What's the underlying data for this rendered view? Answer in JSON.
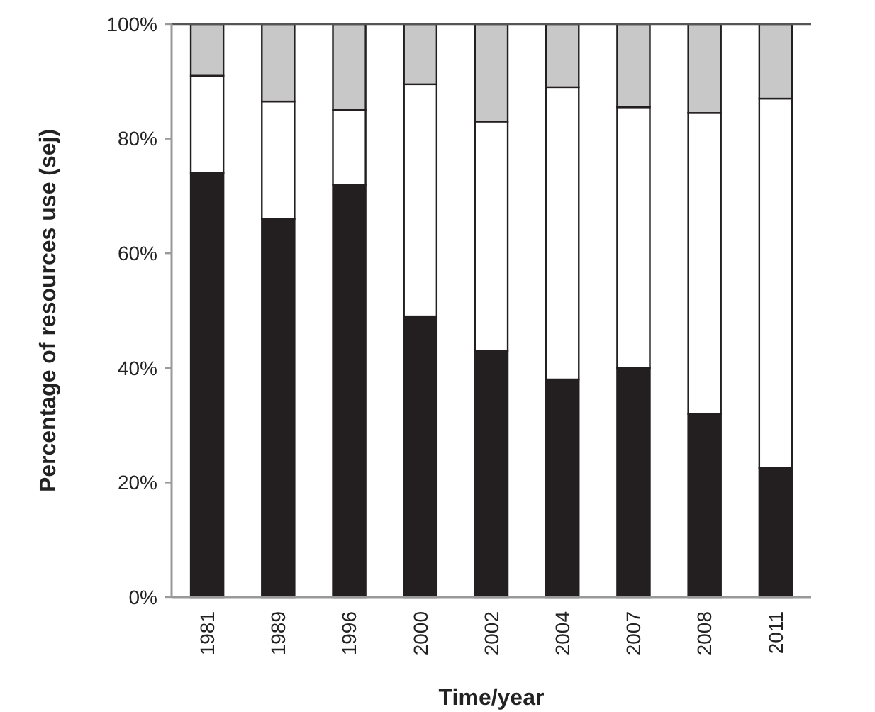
{
  "chart_data": {
    "type": "bar",
    "stacked": true,
    "xlabel": "Time/year",
    "ylabel": "Percentage of resources use (sej)",
    "categories": [
      "1981",
      "1989",
      "1996",
      "2000",
      "2002",
      "2004",
      "2007",
      "2008",
      "2011"
    ],
    "series": [
      {
        "color": "#231f20",
        "values": [
          74,
          66,
          72,
          49,
          43,
          38,
          40,
          32,
          22.5
        ]
      },
      {
        "color": "#ffffff",
        "values": [
          17,
          20.5,
          13,
          40.5,
          40,
          51,
          45.5,
          52.5,
          64.5
        ]
      },
      {
        "color": "#c8c8c8",
        "values": [
          9,
          13.5,
          15,
          10.5,
          17,
          11,
          14.5,
          15.5,
          13
        ]
      }
    ],
    "ylim": [
      0,
      100
    ],
    "yticks": [
      {
        "value": 0,
        "label": "0%"
      },
      {
        "value": 20,
        "label": "20%"
      },
      {
        "value": 40,
        "label": "40%"
      },
      {
        "value": 60,
        "label": "60%"
      },
      {
        "value": 80,
        "label": "80%"
      },
      {
        "value": 100,
        "label": "100%"
      }
    ],
    "grid": false
  }
}
